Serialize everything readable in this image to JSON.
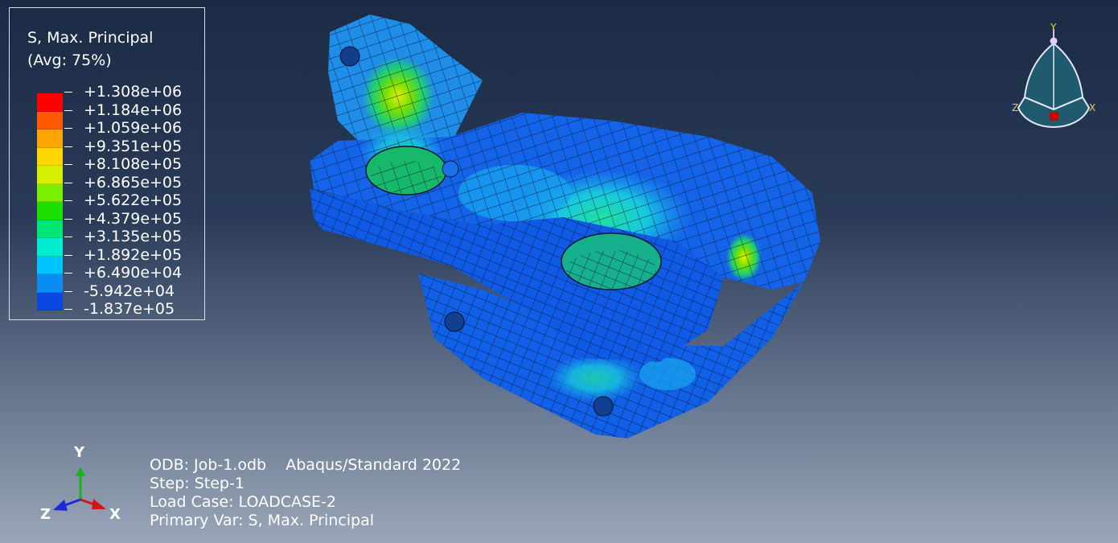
{
  "legend": {
    "title_line1": "S, Max. Principal",
    "title_line2": "(Avg: 75%)",
    "values": [
      "+1.308e+06",
      "+1.184e+06",
      "+1.059e+06",
      "+9.351e+05",
      "+8.108e+05",
      "+6.865e+05",
      "+5.622e+05",
      "+4.379e+05",
      "+3.135e+05",
      "+1.892e+05",
      "+6.490e+04",
      "-5.942e+04",
      "-1.837e+05"
    ],
    "colors": [
      "#ff0000",
      "#ff5a00",
      "#ffa500",
      "#ffd700",
      "#d4f000",
      "#7af000",
      "#1ee000",
      "#00e676",
      "#00eccf",
      "#00c4ff",
      "#0a8cf0",
      "#0a46e0",
      "#0000e0"
    ]
  },
  "info": {
    "odb_line": "ODB: Job-1.odb    Abaqus/Standard 2022",
    "step_line": "Step: Step-1",
    "load_case_line": "Load Case: LOADCASE-2",
    "primary_var_line": "Primary Var: S, Max. Principal"
  },
  "triad": {
    "x_label": "X",
    "y_label": "Y",
    "z_label": "Z"
  },
  "view_cube": {
    "x_label": "X",
    "y_label": "Y",
    "z_label": "Z"
  },
  "colors": {
    "axis_x": "#d41515",
    "axis_y": "#18b418",
    "axis_z": "#1a2ad8",
    "cube_label": "#e8d23a"
  }
}
